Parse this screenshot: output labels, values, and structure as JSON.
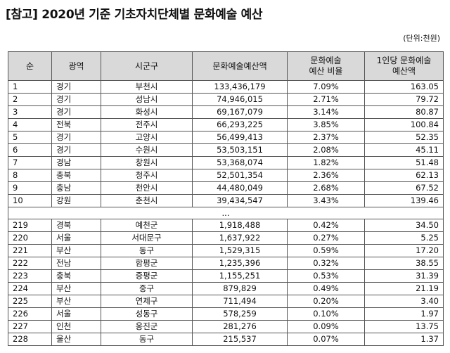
{
  "title": "[참고] 2020년 기준 기초자치단체별 문화예술 예산",
  "unit": "(단위:천원)",
  "headers": [
    "순",
    "광역",
    "시군구",
    "문화예술예산액",
    "문화예술\n예산 비율",
    "1인당 문화예술\n예산액"
  ],
  "rows_top": [
    [
      "1",
      "경기",
      "부천시",
      "133,436,179",
      "7.09%",
      "163.05"
    ],
    [
      "2",
      "경기",
      "성남시",
      "74,946,015",
      "2.71%",
      "79.72"
    ],
    [
      "3",
      "경기",
      "화성시",
      "69,167,079",
      "3.14%",
      "80.87"
    ],
    [
      "4",
      "전북",
      "전주시",
      "66,293,225",
      "3.85%",
      "100.84"
    ],
    [
      "5",
      "경기",
      "고양시",
      "56,499,413",
      "2.37%",
      "52.35"
    ],
    [
      "6",
      "경기",
      "수원시",
      "53,503,151",
      "2.08%",
      "45.11"
    ],
    [
      "7",
      "경남",
      "창원시",
      "53,368,074",
      "1.82%",
      "51.48"
    ],
    [
      "8",
      "충북",
      "청주시",
      "52,501,354",
      "2.36%",
      "62.13"
    ],
    [
      "9",
      "충남",
      "천안시",
      "44,480,049",
      "2.68%",
      "67.52"
    ],
    [
      "10",
      "강원",
      "춘천시",
      "39,434,547",
      "3.43%",
      "139.46"
    ]
  ],
  "ellipsis": "...",
  "rows_bottom": [
    [
      "219",
      "경북",
      "예천군",
      "1,918,488",
      "0.42%",
      "34.50"
    ],
    [
      "220",
      "서울",
      "서대문구",
      "1,637,922",
      "0.27%",
      "5.25"
    ],
    [
      "221",
      "부산",
      "동구",
      "1,529,315",
      "0.59%",
      "17.20"
    ],
    [
      "222",
      "전남",
      "함평군",
      "1,235,396",
      "0.32%",
      "38.55"
    ],
    [
      "223",
      "충북",
      "증평군",
      "1,155,251",
      "0.53%",
      "31.39"
    ],
    [
      "224",
      "부산",
      "중구",
      "879,829",
      "0.49%",
      "21.19"
    ],
    [
      "225",
      "부산",
      "연제구",
      "711,494",
      "0.20%",
      "3.40"
    ],
    [
      "226",
      "서울",
      "성동구",
      "578,259",
      "0.10%",
      "1.97"
    ],
    [
      "227",
      "인천",
      "옹진군",
      "281,276",
      "0.09%",
      "13.75"
    ],
    [
      "228",
      "울산",
      "동구",
      "215,537",
      "0.07%",
      "1.37"
    ]
  ]
}
